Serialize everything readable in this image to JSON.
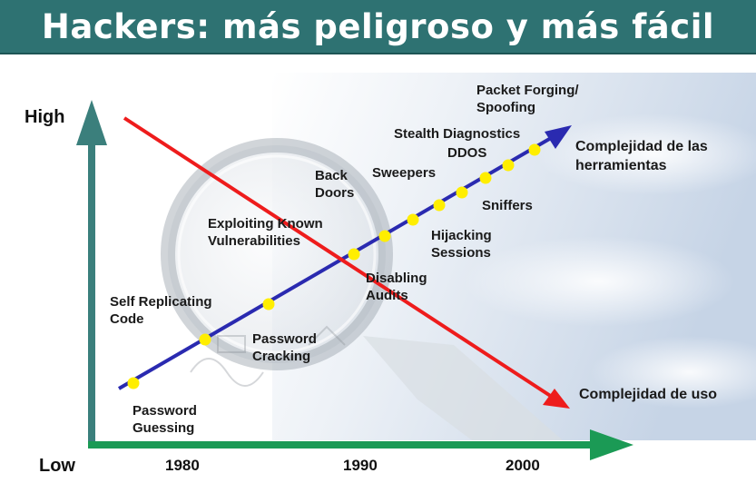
{
  "title": "Hackers: más peligroso y más fácil",
  "axis": {
    "y_high": "High",
    "y_low": "Low",
    "x_ticks": [
      "1980",
      "1990",
      "2000"
    ]
  },
  "lines": {
    "tools_label": "Complejidad de las herramientas",
    "usage_label": "Complejidad de uso",
    "tools_color": "#2a2ab0",
    "usage_color": "#ee1c1c"
  },
  "techniques": [
    {
      "id": "password-guessing",
      "text": "Password\nGuessing"
    },
    {
      "id": "self-replicating-code",
      "text": "Self Replicating\nCode"
    },
    {
      "id": "password-cracking",
      "text": "Password\nCracking"
    },
    {
      "id": "exploiting-known-vulnerabilities",
      "text": "Exploiting Known\nVulnerabilities"
    },
    {
      "id": "disabling-audits",
      "text": "Disabling\nAudits"
    },
    {
      "id": "back-doors",
      "text": "Back\nDoors"
    },
    {
      "id": "hijacking-sessions",
      "text": "Hijacking\nSessions"
    },
    {
      "id": "sweepers",
      "text": "Sweepers"
    },
    {
      "id": "sniffers",
      "text": "Sniffers"
    },
    {
      "id": "ddos",
      "text": "DDOS"
    },
    {
      "id": "stealth-diagnostics",
      "text": "Stealth Diagnostics"
    },
    {
      "id": "packet-forging-spoofing",
      "text": "Packet Forging/\nSpoofing"
    }
  ]
}
